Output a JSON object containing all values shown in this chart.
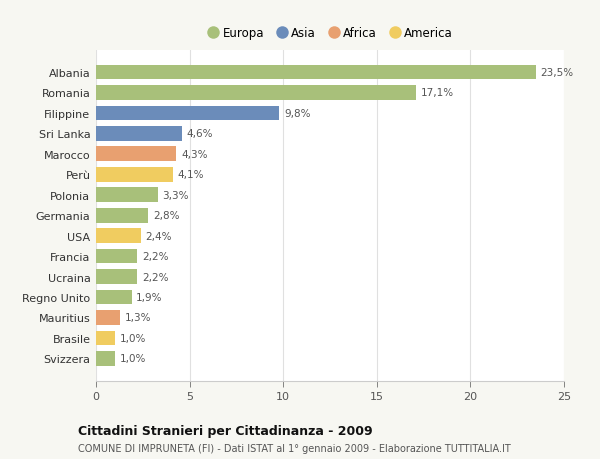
{
  "countries": [
    "Albania",
    "Romania",
    "Filippine",
    "Sri Lanka",
    "Marocco",
    "Perù",
    "Polonia",
    "Germania",
    "USA",
    "Francia",
    "Ucraina",
    "Regno Unito",
    "Mauritius",
    "Brasile",
    "Svizzera"
  ],
  "values": [
    23.5,
    17.1,
    9.8,
    4.6,
    4.3,
    4.1,
    3.3,
    2.8,
    2.4,
    2.2,
    2.2,
    1.9,
    1.3,
    1.0,
    1.0
  ],
  "continents": [
    "Europa",
    "Europa",
    "Asia",
    "Asia",
    "Africa",
    "America",
    "Europa",
    "Europa",
    "America",
    "Europa",
    "Europa",
    "Europa",
    "Africa",
    "America",
    "Europa"
  ],
  "colors": {
    "Europa": "#a8c07a",
    "Asia": "#6b8cba",
    "Africa": "#e8a070",
    "America": "#f0cc60"
  },
  "title": "Cittadini Stranieri per Cittadinanza - 2009",
  "subtitle": "COMUNE DI IMPRUNETA (FI) - Dati ISTAT al 1° gennaio 2009 - Elaborazione TUTTITALIA.IT",
  "xlim": [
    0,
    25
  ],
  "xticks": [
    0,
    5,
    10,
    15,
    20,
    25
  ],
  "bg_color": "#f7f7f2",
  "plot_bg_color": "#ffffff",
  "grid_color": "#e0e0e0",
  "legend_order": [
    "Europa",
    "Asia",
    "Africa",
    "America"
  ]
}
